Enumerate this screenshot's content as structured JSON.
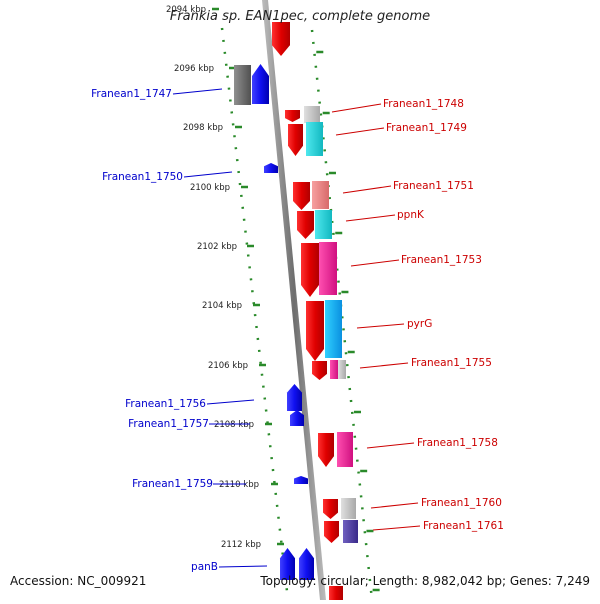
{
  "title": "Frankia sp. EAN1pec, complete genome",
  "footer": {
    "accession": "Accession: NC_009921",
    "summary": "Topology: circular; Length: 8,982,042 bp; Genes: 7,249"
  },
  "colors": {
    "backbone": "#7f7f7f",
    "tick": "#2a8a2a",
    "left_label": "#0000cc",
    "right_label": "#cc0000"
  },
  "kbp_labels": [
    "2094 kbp",
    "2096 kbp",
    "2098 kbp",
    "2100 kbp",
    "2102 kbp",
    "2104 kbp",
    "2106 kbp",
    "2108 kbp",
    "2110 kbp",
    "2112 kbp"
  ],
  "genes_left": [
    {
      "name": "Franean1_1747"
    },
    {
      "name": "Franean1_1750"
    },
    {
      "name": "Franean1_1756"
    },
    {
      "name": "Franean1_1757"
    },
    {
      "name": "Franean1_1759"
    },
    {
      "name": "panB"
    }
  ],
  "genes_right": [
    {
      "name": "Franean1_1748"
    },
    {
      "name": "Franean1_1749"
    },
    {
      "name": "Franean1_1751"
    },
    {
      "name": "ppnK"
    },
    {
      "name": "Franean1_1753"
    },
    {
      "name": "pyrG"
    },
    {
      "name": "Franean1_1755"
    },
    {
      "name": "Franean1_1758"
    },
    {
      "name": "Franean1_1760"
    },
    {
      "name": "Franean1_1761"
    }
  ]
}
